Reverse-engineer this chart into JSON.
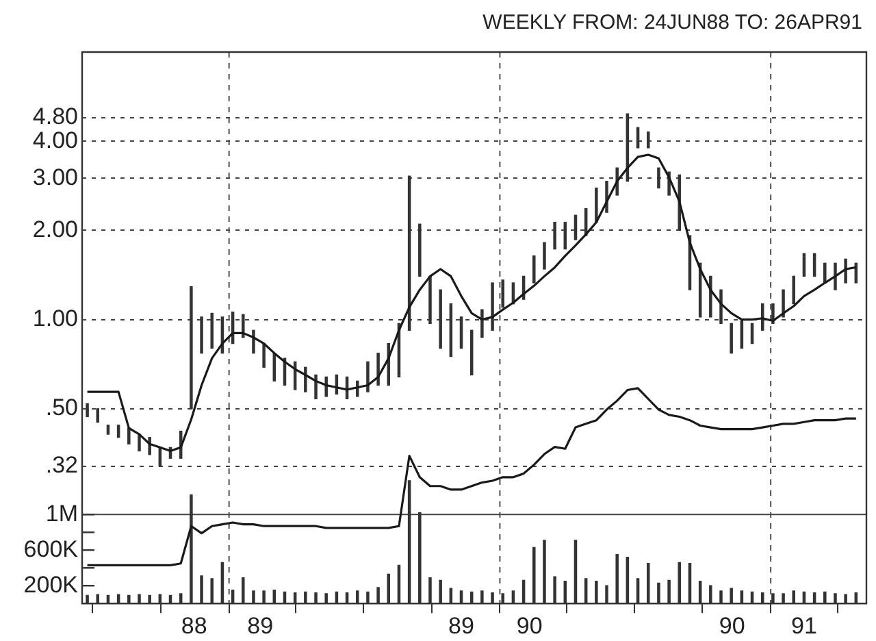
{
  "chart_data": {
    "type": "bar",
    "title": "WEEKLY  FROM:  24JUN88 TO:  26APR91",
    "x": [
      "1988-06-24",
      "1988-07-08",
      "1988-07-22",
      "1988-08-05",
      "1988-08-19",
      "1988-09-02",
      "1988-09-16",
      "1988-09-30",
      "1988-10-14",
      "1988-10-28",
      "1988-11-11",
      "1988-11-25",
      "1988-12-09",
      "1988-12-23",
      "1989-01-06",
      "1989-01-20",
      "1989-02-03",
      "1989-02-17",
      "1989-03-03",
      "1989-03-17",
      "1989-03-31",
      "1989-04-14",
      "1989-04-28",
      "1989-05-12",
      "1989-05-26",
      "1989-06-09",
      "1989-06-23",
      "1989-07-07",
      "1989-07-21",
      "1989-08-04",
      "1989-08-18",
      "1989-09-01",
      "1989-09-15",
      "1989-09-29",
      "1989-10-13",
      "1989-10-27",
      "1989-11-10",
      "1989-11-24",
      "1989-12-08",
      "1989-12-22",
      "1990-01-05",
      "1990-01-19",
      "1990-02-02",
      "1990-02-16",
      "1990-03-02",
      "1990-03-16",
      "1990-03-30",
      "1990-04-13",
      "1990-04-27",
      "1990-05-11",
      "1990-05-25",
      "1990-06-08",
      "1990-06-22",
      "1990-07-06",
      "1990-07-20",
      "1990-08-03",
      "1990-08-17",
      "1990-08-31",
      "1990-09-14",
      "1990-09-28",
      "1990-10-12",
      "1990-10-26",
      "1990-11-09",
      "1990-11-23",
      "1990-12-07",
      "1990-12-21",
      "1991-01-04",
      "1991-01-18",
      "1991-02-01",
      "1991-02-15",
      "1991-03-01",
      "1991-03-15",
      "1991-03-29",
      "1991-04-12",
      "1991-04-26"
    ],
    "series": [
      {
        "color": "#333333",
        "base": [
          0.47,
          0.45,
          0.41,
          0.4,
          0.38,
          0.36,
          0.35,
          0.32,
          0.34,
          0.34,
          0.5,
          0.77,
          0.8,
          0.77,
          0.83,
          0.87,
          0.77,
          0.69,
          0.62,
          0.6,
          0.58,
          0.57,
          0.54,
          0.55,
          0.56,
          0.54,
          0.55,
          0.57,
          0.6,
          0.6,
          0.64,
          0.92,
          1.4,
          0.97,
          0.8,
          0.75,
          0.8,
          0.65,
          0.87,
          0.92,
          1.1,
          1.13,
          1.17,
          1.33,
          1.48,
          1.73,
          1.73,
          1.86,
          1.92,
          2.13,
          2.3,
          2.63,
          2.93,
          3.8,
          3.8,
          2.78,
          2.63,
          2.0,
          1.26,
          1.02,
          1.02,
          0.97,
          0.77,
          0.8,
          0.83,
          0.92,
          0.97,
          1.02,
          1.13,
          1.4,
          1.4,
          1.33,
          1.26,
          1.33,
          1.33
        ],
        "values": [
          0.05,
          0.05,
          0.03,
          0.04,
          0.05,
          0.05,
          0.05,
          0.05,
          0.03,
          0.08,
          0.79,
          0.25,
          0.25,
          0.25,
          0.23,
          0.17,
          0.15,
          0.14,
          0.15,
          0.14,
          0.14,
          0.12,
          0.11,
          0.09,
          0.09,
          0.1,
          0.07,
          0.15,
          0.17,
          0.23,
          0.33,
          2.13,
          0.7,
          0.43,
          0.46,
          0.38,
          0.22,
          0.27,
          0.21,
          0.41,
          0.26,
          0.2,
          0.23,
          0.31,
          0.34,
          0.4,
          0.4,
          0.39,
          0.45,
          0.65,
          0.63,
          0.62,
          2.02,
          0.65,
          0.5,
          0.47,
          0.52,
          1.08,
          0.66,
          0.53,
          0.38,
          0.29,
          0.2,
          0.19,
          0.14,
          0.21,
          0.16,
          0.24,
          0.27,
          0.27,
          0.27,
          0.22,
          0.29,
          0.27,
          0.22
        ]
      },
      {
        "type": "line",
        "color": "#1a1a1a",
        "values": [
          0.57,
          0.57,
          0.57,
          0.57,
          0.43,
          0.41,
          0.38,
          0.37,
          0.36,
          0.37,
          0.46,
          0.6,
          0.74,
          0.83,
          0.9,
          0.9,
          0.87,
          0.83,
          0.77,
          0.72,
          0.68,
          0.65,
          0.62,
          0.6,
          0.59,
          0.58,
          0.59,
          0.6,
          0.64,
          0.74,
          0.92,
          1.1,
          1.26,
          1.4,
          1.48,
          1.4,
          1.2,
          1.05,
          1.0,
          1.02,
          1.08,
          1.14,
          1.22,
          1.3,
          1.4,
          1.5,
          1.64,
          1.78,
          1.94,
          2.13,
          2.5,
          2.93,
          3.25,
          3.54,
          3.6,
          3.5,
          3.02,
          2.5,
          1.82,
          1.48,
          1.26,
          1.13,
          1.05,
          1.0,
          1.0,
          1.01,
          0.99,
          1.05,
          1.11,
          1.2,
          1.26,
          1.33,
          1.4,
          1.48,
          1.5
        ]
      },
      {
        "type": "line",
        "color": "#1a1a1a",
        "axis": "y2",
        "values": [
          430000,
          430000,
          430000,
          430000,
          430000,
          430000,
          430000,
          430000,
          430000,
          450000,
          870000,
          790000,
          870000,
          890000,
          910000,
          890000,
          890000,
          870000,
          870000,
          870000,
          870000,
          870000,
          870000,
          850000,
          850000,
          850000,
          850000,
          850000,
          850000,
          850000,
          870000,
          1660000,
          1420000,
          1320000,
          1320000,
          1280000,
          1280000,
          1320000,
          1360000,
          1380000,
          1420000,
          1420000,
          1460000,
          1560000,
          1680000,
          1760000,
          1740000,
          1980000,
          2020000,
          2060000,
          2180000,
          2280000,
          2400000,
          2420000,
          2300000,
          2180000,
          2120000,
          2100000,
          2060000,
          2000000,
          1980000,
          1960000,
          1960000,
          1960000,
          1960000,
          1980000,
          2000000,
          2020000,
          2020000,
          2040000,
          2060000,
          2060000,
          2060000,
          2080000,
          2080000
        ]
      },
      {
        "color": "#333333",
        "axis": "y2",
        "values": [
          90000,
          100000,
          90000,
          100000,
          90000,
          100000,
          90000,
          100000,
          90000,
          110000,
          1220000,
          310000,
          280000,
          460000,
          150000,
          290000,
          140000,
          140000,
          150000,
          130000,
          120000,
          130000,
          120000,
          110000,
          130000,
          120000,
          140000,
          130000,
          180000,
          330000,
          430000,
          1380000,
          1020000,
          290000,
          260000,
          170000,
          140000,
          130000,
          140000,
          120000,
          110000,
          140000,
          260000,
          630000,
          710000,
          300000,
          250000,
          710000,
          280000,
          250000,
          200000,
          550000,
          520000,
          280000,
          450000,
          230000,
          260000,
          460000,
          450000,
          250000,
          200000,
          140000,
          170000,
          140000,
          130000,
          120000,
          110000,
          110000,
          140000,
          130000,
          120000,
          130000,
          110000,
          100000,
          120000
        ]
      }
    ],
    "xlim": [
      "1988-06-17",
      "1991-05-10"
    ],
    "xticks": [
      {
        "value": "1988-07-01",
        "label": null
      },
      {
        "value": "1988-10-01",
        "label": null
      },
      {
        "value": "1988-11-15",
        "label": "88"
      },
      {
        "value": "1989-01-01",
        "label": null
      },
      {
        "value": "1989-02-12",
        "label": "89"
      },
      {
        "value": "1989-04-01",
        "label": null
      },
      {
        "value": "1989-07-01",
        "label": null
      },
      {
        "value": "1989-10-01",
        "label": null
      },
      {
        "value": "1989-11-10",
        "label": "89"
      },
      {
        "value": "1990-01-01",
        "label": null
      },
      {
        "value": "1990-02-10",
        "label": "90"
      },
      {
        "value": "1990-04-01",
        "label": null
      },
      {
        "value": "1990-07-01",
        "label": null
      },
      {
        "value": "1990-10-01",
        "label": null
      },
      {
        "value": "1990-11-10",
        "label": "90"
      },
      {
        "value": "1991-01-01",
        "label": null
      },
      {
        "value": "1991-02-15",
        "label": "91"
      },
      {
        "value": "1991-04-01",
        "label": null
      }
    ],
    "log": "y",
    "ylim": [
      0.11,
      8.0
    ],
    "yticks": [
      {
        "value": 0.32,
        "label": ".32"
      },
      {
        "value": 0.5,
        "label": ".50"
      },
      {
        "value": 1,
        "label": "1.00"
      },
      {
        "value": 2,
        "label": "2.00"
      },
      {
        "value": 3,
        "label": "3.00"
      },
      {
        "value": 4,
        "label": "4.00"
      },
      {
        "value": 4.8,
        "label": "4.80"
      }
    ],
    "y2lim": [
      0,
      6200000
    ],
    "y2ticks": [
      {
        "value": 200000,
        "label": "200K"
      },
      {
        "value": 400000,
        "label": null
      },
      {
        "value": 600000,
        "label": "600K"
      },
      {
        "value": 800000,
        "label": null
      },
      {
        "value": 1000000,
        "label": "1M"
      }
    ],
    "grid": "y",
    "ref_lines": [
      {
        "axis": "x",
        "value": "1989-01-01",
        "line_style": "dashed"
      },
      {
        "axis": "x",
        "value": "1990-01-01",
        "line_style": "dashed"
      },
      {
        "axis": "x",
        "value": "1991-01-01",
        "line_style": "dashed"
      },
      {
        "axis": "y2",
        "value": 1000000,
        "line_style": "solid",
        "color": "#444444"
      }
    ],
    "legend": false
  }
}
